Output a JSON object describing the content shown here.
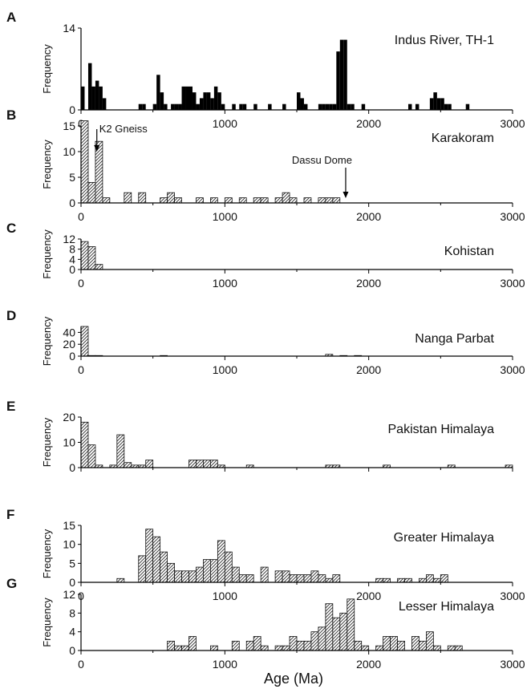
{
  "chart_data": [
    {
      "type": "bar",
      "panel_letter": "A",
      "title": "Indus River, TH-1",
      "ylabel": "Frequency",
      "fill": "solid",
      "bin_width": 25,
      "xlim": [
        0,
        3000
      ],
      "ylim": [
        0,
        14
      ],
      "yticks": [
        0,
        14
      ],
      "xticks": [
        0,
        1000,
        2000,
        3000
      ],
      "show_x_tick_labels": true,
      "bins": [
        [
          0,
          4
        ],
        [
          50,
          8
        ],
        [
          75,
          4
        ],
        [
          100,
          5
        ],
        [
          125,
          4
        ],
        [
          150,
          2
        ],
        [
          400,
          1
        ],
        [
          425,
          1
        ],
        [
          500,
          1
        ],
        [
          525,
          6
        ],
        [
          550,
          3
        ],
        [
          575,
          1
        ],
        [
          625,
          1
        ],
        [
          650,
          1
        ],
        [
          675,
          1
        ],
        [
          700,
          4
        ],
        [
          725,
          4
        ],
        [
          750,
          4
        ],
        [
          775,
          3
        ],
        [
          800,
          1
        ],
        [
          825,
          2
        ],
        [
          850,
          3
        ],
        [
          875,
          3
        ],
        [
          900,
          2
        ],
        [
          925,
          4
        ],
        [
          950,
          3
        ],
        [
          975,
          1
        ],
        [
          1050,
          1
        ],
        [
          1100,
          1
        ],
        [
          1125,
          1
        ],
        [
          1200,
          1
        ],
        [
          1300,
          1
        ],
        [
          1400,
          1
        ],
        [
          1500,
          3
        ],
        [
          1525,
          2
        ],
        [
          1550,
          1
        ],
        [
          1650,
          1
        ],
        [
          1675,
          1
        ],
        [
          1700,
          1
        ],
        [
          1725,
          1
        ],
        [
          1750,
          1
        ],
        [
          1775,
          10
        ],
        [
          1800,
          12
        ],
        [
          1825,
          12
        ],
        [
          1850,
          1
        ],
        [
          1875,
          1
        ],
        [
          1950,
          1
        ],
        [
          2275,
          1
        ],
        [
          2325,
          1
        ],
        [
          2425,
          2
        ],
        [
          2450,
          3
        ],
        [
          2475,
          2
        ],
        [
          2500,
          2
        ],
        [
          2525,
          1
        ],
        [
          2550,
          1
        ],
        [
          2675,
          1
        ]
      ],
      "annotations": []
    },
    {
      "type": "bar",
      "panel_letter": "B",
      "title": "Karakoram",
      "ylabel": "Frequency",
      "fill": "hatched",
      "bin_width": 50,
      "xlim": [
        0,
        3000
      ],
      "ylim": [
        0,
        15
      ],
      "yticks": [
        0,
        5,
        10,
        15
      ],
      "xticks": [
        0,
        1000,
        2000,
        3000
      ],
      "show_x_tick_labels": true,
      "bins": [
        [
          0,
          16
        ],
        [
          50,
          4
        ],
        [
          100,
          12
        ],
        [
          150,
          1
        ],
        [
          300,
          2
        ],
        [
          400,
          2
        ],
        [
          550,
          1
        ],
        [
          600,
          2
        ],
        [
          650,
          1
        ],
        [
          800,
          1
        ],
        [
          900,
          1
        ],
        [
          1000,
          1
        ],
        [
          1100,
          1
        ],
        [
          1200,
          1
        ],
        [
          1250,
          1
        ],
        [
          1350,
          1
        ],
        [
          1400,
          2
        ],
        [
          1450,
          1
        ],
        [
          1550,
          1
        ],
        [
          1650,
          1
        ],
        [
          1700,
          1
        ],
        [
          1750,
          1
        ]
      ],
      "annotations": [
        {
          "text": "K2 Gneiss",
          "x": 110
        },
        {
          "text": "Dassu Dome",
          "x": 1840
        }
      ]
    },
    {
      "type": "bar",
      "panel_letter": "C",
      "title": "Kohistan",
      "ylabel": "Frequency",
      "fill": "hatched",
      "bin_width": 50,
      "xlim": [
        0,
        3000
      ],
      "ylim": [
        0,
        12
      ],
      "yticks": [
        0,
        4,
        8,
        12
      ],
      "xticks": [
        0,
        1000,
        2000,
        3000
      ],
      "show_x_tick_labels": true,
      "bins": [
        [
          0,
          11
        ],
        [
          50,
          9
        ],
        [
          100,
          2
        ]
      ],
      "annotations": []
    },
    {
      "type": "bar",
      "panel_letter": "D",
      "title": "Nanga Parbat",
      "ylabel": "Frequency",
      "fill": "hatched",
      "bin_width": 50,
      "xlim": [
        0,
        3000
      ],
      "ylim": [
        0,
        50
      ],
      "yticks": [
        0,
        20,
        40
      ],
      "xticks": [
        0,
        1000,
        2000,
        3000
      ],
      "show_x_tick_labels": true,
      "bins": [
        [
          0,
          50
        ],
        [
          50,
          1
        ],
        [
          100,
          1
        ],
        [
          550,
          1
        ],
        [
          1700,
          3
        ],
        [
          1800,
          1
        ],
        [
          1900,
          1
        ]
      ],
      "annotations": []
    },
    {
      "type": "bar",
      "panel_letter": "E",
      "title": "Pakistan Himalaya",
      "ylabel": "Frequency",
      "fill": "hatched",
      "bin_width": 50,
      "xlim": [
        0,
        3000
      ],
      "ylim": [
        0,
        20
      ],
      "yticks": [
        0,
        10,
        20
      ],
      "xticks": [
        0,
        1000,
        2000,
        3000
      ],
      "show_x_tick_labels": false,
      "bins": [
        [
          0,
          18
        ],
        [
          50,
          9
        ],
        [
          100,
          1
        ],
        [
          200,
          1
        ],
        [
          250,
          13
        ],
        [
          300,
          2
        ],
        [
          350,
          1
        ],
        [
          400,
          1
        ],
        [
          450,
          3
        ],
        [
          750,
          3
        ],
        [
          800,
          3
        ],
        [
          850,
          3
        ],
        [
          900,
          3
        ],
        [
          950,
          1
        ],
        [
          1150,
          1
        ],
        [
          1700,
          1
        ],
        [
          1750,
          1
        ],
        [
          2100,
          1
        ],
        [
          2550,
          1
        ],
        [
          2950,
          1
        ]
      ],
      "annotations": []
    },
    {
      "type": "bar",
      "panel_letter": "F",
      "title": "Greater Himalaya",
      "ylabel": "Frequency",
      "fill": "hatched",
      "bin_width": 50,
      "xlim": [
        0,
        3000
      ],
      "ylim": [
        0,
        15
      ],
      "yticks": [
        0,
        5,
        10,
        15
      ],
      "xticks": [
        0,
        1000,
        2000,
        3000
      ],
      "show_x_tick_labels": true,
      "bins": [
        [
          250,
          1
        ],
        [
          400,
          7
        ],
        [
          450,
          14
        ],
        [
          500,
          12
        ],
        [
          550,
          8
        ],
        [
          600,
          5
        ],
        [
          650,
          3
        ],
        [
          700,
          3
        ],
        [
          750,
          3
        ],
        [
          800,
          4
        ],
        [
          850,
          6
        ],
        [
          900,
          6
        ],
        [
          950,
          11
        ],
        [
          1000,
          8
        ],
        [
          1050,
          4
        ],
        [
          1100,
          2
        ],
        [
          1150,
          2
        ],
        [
          1250,
          4
        ],
        [
          1350,
          3
        ],
        [
          1400,
          3
        ],
        [
          1450,
          2
        ],
        [
          1500,
          2
        ],
        [
          1550,
          2
        ],
        [
          1600,
          3
        ],
        [
          1650,
          2
        ],
        [
          1700,
          1
        ],
        [
          1750,
          2
        ],
        [
          2050,
          1
        ],
        [
          2100,
          1
        ],
        [
          2200,
          1
        ],
        [
          2250,
          1
        ],
        [
          2350,
          1
        ],
        [
          2400,
          2
        ],
        [
          2450,
          1
        ],
        [
          2500,
          2
        ]
      ],
      "annotations": []
    },
    {
      "type": "bar",
      "panel_letter": "G",
      "title": "Lesser Himalaya",
      "ylabel": "Frequency",
      "fill": "hatched",
      "bin_width": 50,
      "xlim": [
        0,
        3000
      ],
      "ylim": [
        0,
        12
      ],
      "yticks": [
        0,
        4,
        8,
        12
      ],
      "xticks": [
        0,
        1000,
        2000,
        3000
      ],
      "show_x_tick_labels": true,
      "bins": [
        [
          600,
          2
        ],
        [
          650,
          1
        ],
        [
          700,
          1
        ],
        [
          750,
          3
        ],
        [
          900,
          1
        ],
        [
          1050,
          2
        ],
        [
          1150,
          2
        ],
        [
          1200,
          3
        ],
        [
          1250,
          1
        ],
        [
          1350,
          1
        ],
        [
          1400,
          1
        ],
        [
          1450,
          3
        ],
        [
          1500,
          2
        ],
        [
          1550,
          2
        ],
        [
          1600,
          4
        ],
        [
          1650,
          5
        ],
        [
          1700,
          10
        ],
        [
          1750,
          7
        ],
        [
          1800,
          8
        ],
        [
          1850,
          11
        ],
        [
          1900,
          2
        ],
        [
          1950,
          1
        ],
        [
          2050,
          1
        ],
        [
          2100,
          3
        ],
        [
          2150,
          3
        ],
        [
          2200,
          2
        ],
        [
          2300,
          3
        ],
        [
          2350,
          2
        ],
        [
          2400,
          4
        ],
        [
          2450,
          1
        ],
        [
          2550,
          1
        ],
        [
          2600,
          1
        ]
      ],
      "annotations": []
    }
  ],
  "x_axis_title": "Age (Ma)"
}
